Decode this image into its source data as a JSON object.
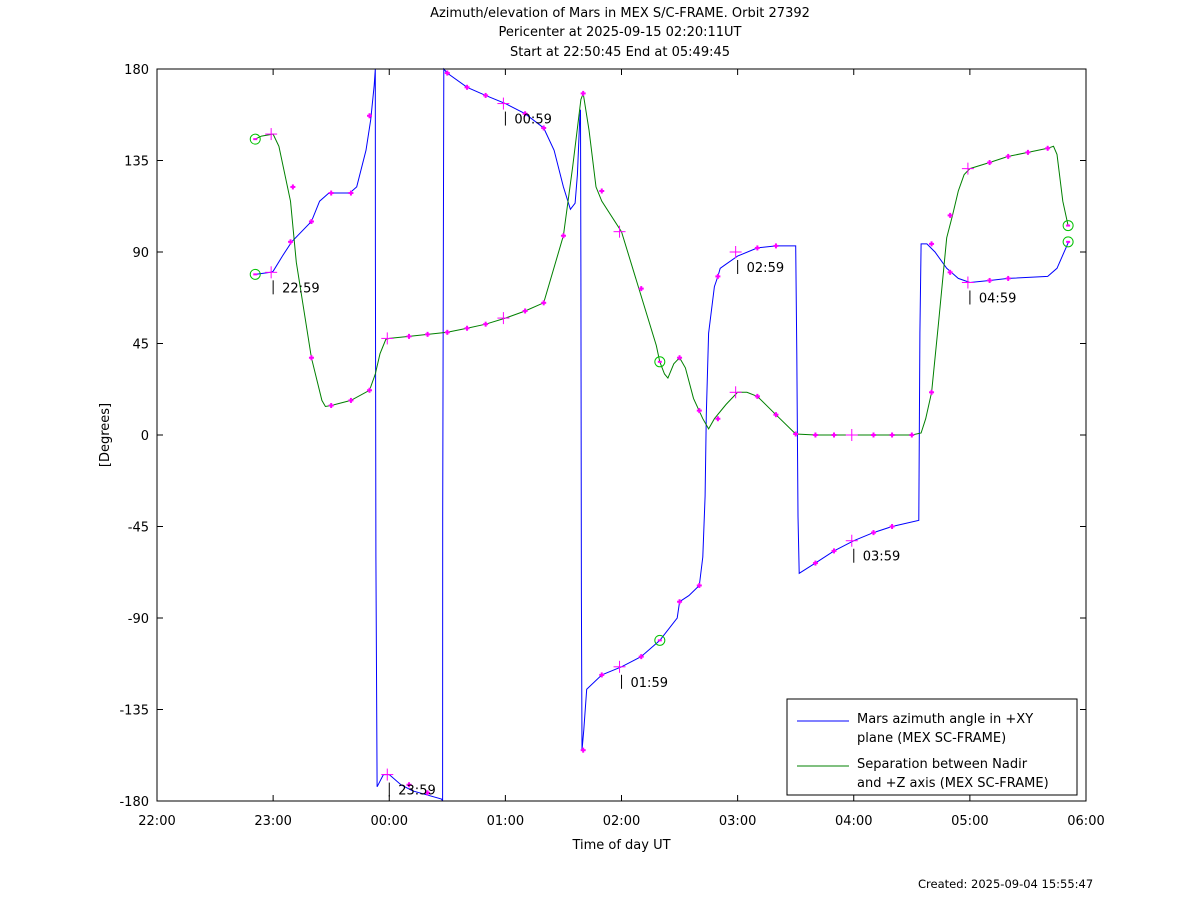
{
  "chart_data": {
    "type": "line",
    "title_lines": [
      "Azimuth/elevation of Mars in MEX S/C-FRAME.  Orbit 27392",
      "Pericenter at 2025-09-15 02:20:11UT",
      "Start at 22:50:45 End at 05:49:45"
    ],
    "xlabel": "Time of day UT",
    "ylabel": "[Degrees]",
    "xlim": [
      22,
      30
    ],
    "ylim": [
      -180,
      180
    ],
    "x_tick_values": [
      22,
      23,
      24,
      25,
      26,
      27,
      28,
      29,
      30
    ],
    "x_tick_labels": [
      "22:00",
      "23:00",
      "00:00",
      "01:00",
      "02:00",
      "03:00",
      "04:00",
      "05:00",
      "06:00"
    ],
    "y_tick_values": [
      180,
      135,
      90,
      45,
      0,
      -45,
      -90,
      -135,
      -180
    ],
    "y_tick_labels": [
      "180",
      "135",
      "90",
      "45",
      "0",
      "-45",
      "-90",
      "-135",
      "-180"
    ],
    "grid": false,
    "legend_position": "bottom-right",
    "series": [
      {
        "name": "Mars azimuth angle in +XY plane (MEX SC-FRAME)",
        "legend_lines": [
          "Mars azimuth angle in +XY",
          "plane (MEX SC-FRAME)"
        ],
        "color": "#0000ff",
        "points": [
          [
            22.846,
            79
          ],
          [
            22.98,
            80
          ],
          [
            23.0,
            80.5
          ],
          [
            23.08,
            88
          ],
          [
            23.16,
            95
          ],
          [
            23.33,
            105
          ],
          [
            23.4,
            115
          ],
          [
            23.48,
            119
          ],
          [
            23.66,
            119
          ],
          [
            23.72,
            122
          ],
          [
            23.8,
            140
          ],
          [
            23.84,
            155
          ],
          [
            23.87,
            172
          ],
          [
            23.88,
            180
          ],
          [
            23.88,
            180
          ],
          [
            23.881,
            90
          ],
          [
            23.885,
            -60
          ],
          [
            23.895,
            -173
          ],
          [
            23.95,
            -167
          ],
          [
            24.0,
            -167
          ],
          [
            24.1,
            -172
          ],
          [
            24.2,
            -175
          ],
          [
            24.45,
            -179
          ],
          [
            24.459,
            -180
          ],
          [
            24.459,
            -180
          ],
          [
            24.46,
            -40
          ],
          [
            24.47,
            180
          ],
          [
            24.5,
            178
          ],
          [
            24.67,
            171
          ],
          [
            24.83,
            167
          ],
          [
            25.0,
            163
          ],
          [
            25.17,
            158
          ],
          [
            25.33,
            151
          ],
          [
            25.42,
            140
          ],
          [
            25.5,
            122
          ],
          [
            25.56,
            111
          ],
          [
            25.6,
            114
          ],
          [
            25.62,
            128
          ],
          [
            25.64,
            155
          ],
          [
            25.647,
            160
          ],
          [
            25.65,
            80
          ],
          [
            25.655,
            -80
          ],
          [
            25.66,
            -155
          ],
          [
            25.675,
            -145
          ],
          [
            25.7,
            -125
          ],
          [
            25.83,
            -118
          ],
          [
            26.0,
            -114
          ],
          [
            26.17,
            -109
          ],
          [
            26.33,
            -101
          ],
          [
            26.48,
            -90
          ],
          [
            26.5,
            -82
          ],
          [
            26.58,
            -79
          ],
          [
            26.67,
            -74
          ],
          [
            26.7,
            -60
          ],
          [
            26.72,
            -30
          ],
          [
            26.73,
            10
          ],
          [
            26.75,
            50
          ],
          [
            26.8,
            73
          ],
          [
            26.83,
            78
          ],
          [
            26.85,
            82
          ],
          [
            26.9,
            84
          ],
          [
            27.0,
            88
          ],
          [
            27.17,
            92
          ],
          [
            27.33,
            93
          ],
          [
            27.5,
            93
          ],
          [
            27.51,
            40
          ],
          [
            27.52,
            -40
          ],
          [
            27.53,
            -68
          ],
          [
            27.67,
            -63
          ],
          [
            27.83,
            -57
          ],
          [
            28.0,
            -52
          ],
          [
            28.17,
            -48
          ],
          [
            28.33,
            -45
          ],
          [
            28.56,
            -42
          ],
          [
            28.57,
            50
          ],
          [
            28.58,
            94
          ],
          [
            28.63,
            94
          ],
          [
            28.7,
            90
          ],
          [
            28.8,
            82
          ],
          [
            28.9,
            77
          ],
          [
            29.0,
            75
          ],
          [
            29.17,
            76
          ],
          [
            29.33,
            77
          ],
          [
            29.67,
            78
          ],
          [
            29.75,
            82
          ],
          [
            29.85,
            95
          ]
        ]
      },
      {
        "name": "Separation between Nadir and +Z axis (MEX SC-FRAME)",
        "legend_lines": [
          "Separation between Nadir",
          "and +Z axis (MEX SC-FRAME)"
        ],
        "color": "#008000",
        "points": [
          [
            22.846,
            145.5
          ],
          [
            22.9,
            147
          ],
          [
            23.0,
            148
          ],
          [
            23.05,
            142
          ],
          [
            23.15,
            115
          ],
          [
            23.2,
            85
          ],
          [
            23.33,
            38
          ],
          [
            23.42,
            17
          ],
          [
            23.45,
            14
          ],
          [
            23.5,
            14.5
          ],
          [
            23.67,
            17
          ],
          [
            23.83,
            22
          ],
          [
            23.88,
            30
          ],
          [
            23.92,
            40
          ],
          [
            23.97,
            47
          ],
          [
            24.0,
            47.5
          ],
          [
            24.17,
            48.5
          ],
          [
            24.33,
            49.5
          ],
          [
            24.5,
            50.5
          ],
          [
            24.67,
            52.5
          ],
          [
            24.83,
            54.5
          ],
          [
            25.0,
            57.5
          ],
          [
            25.17,
            61
          ],
          [
            25.33,
            65
          ],
          [
            25.5,
            98
          ],
          [
            25.58,
            132
          ],
          [
            25.65,
            165
          ],
          [
            25.67,
            168
          ],
          [
            25.72,
            150
          ],
          [
            25.78,
            122
          ],
          [
            25.83,
            115
          ],
          [
            26.0,
            100
          ],
          [
            26.15,
            72
          ],
          [
            26.3,
            44
          ],
          [
            26.33,
            36
          ],
          [
            26.37,
            30
          ],
          [
            26.4,
            28
          ],
          [
            26.45,
            35
          ],
          [
            26.5,
            38
          ],
          [
            26.55,
            33
          ],
          [
            26.62,
            18
          ],
          [
            26.7,
            8
          ],
          [
            26.75,
            3
          ],
          [
            26.8,
            8
          ],
          [
            26.9,
            15
          ],
          [
            27.0,
            21
          ],
          [
            27.08,
            21
          ],
          [
            27.17,
            19
          ],
          [
            27.33,
            10
          ],
          [
            27.5,
            0.5
          ],
          [
            27.67,
            0
          ],
          [
            27.83,
            0
          ],
          [
            28.0,
            0
          ],
          [
            28.17,
            0
          ],
          [
            28.33,
            0
          ],
          [
            28.5,
            0
          ],
          [
            28.58,
            1
          ],
          [
            28.62,
            8
          ],
          [
            28.67,
            21
          ],
          [
            28.73,
            55
          ],
          [
            28.8,
            97
          ],
          [
            28.85,
            108
          ],
          [
            28.9,
            120
          ],
          [
            28.95,
            128
          ],
          [
            29.0,
            131
          ],
          [
            29.17,
            134
          ],
          [
            29.33,
            137
          ],
          [
            29.5,
            139
          ],
          [
            29.67,
            141
          ],
          [
            29.72,
            142
          ],
          [
            29.75,
            138
          ],
          [
            29.8,
            115
          ],
          [
            29.846,
            103
          ]
        ]
      }
    ],
    "hour_markers": [
      {
        "x": 22.983,
        "y": 80,
        "label": "22:59"
      },
      {
        "x": 23.983,
        "y": -167,
        "label": "23:59"
      },
      {
        "x": 24.983,
        "y": 163,
        "label": "00:59"
      },
      {
        "x": 25.983,
        "y": -114,
        "label": "01:59"
      },
      {
        "x": 26.983,
        "y": 90,
        "label": "02:59"
      },
      {
        "x": 27.983,
        "y": -52,
        "label": "03:59"
      },
      {
        "x": 28.983,
        "y": 75,
        "label": "04:59"
      }
    ],
    "cross_markers": [
      [
        22.983,
        80
      ],
      [
        23.983,
        -167
      ],
      [
        24.983,
        163
      ],
      [
        25.983,
        -114
      ],
      [
        26.983,
        90
      ],
      [
        27.983,
        -52
      ],
      [
        28.983,
        75
      ],
      [
        22.983,
        148
      ],
      [
        23.983,
        47.5
      ],
      [
        24.983,
        57.5
      ],
      [
        25.983,
        100
      ],
      [
        26.983,
        21
      ],
      [
        27.983,
        0
      ],
      [
        28.983,
        131
      ]
    ],
    "circle_markers": [
      [
        22.846,
        79
      ],
      [
        22.846,
        145.5
      ],
      [
        26.33,
        -101
      ],
      [
        26.33,
        36
      ],
      [
        29.846,
        95
      ],
      [
        29.846,
        103
      ]
    ],
    "minute_dots": [
      [
        23.15,
        95
      ],
      [
        23.33,
        105
      ],
      [
        23.5,
        119
      ],
      [
        23.67,
        119
      ],
      [
        23.83,
        157
      ],
      [
        24.17,
        -172
      ],
      [
        24.33,
        -176
      ],
      [
        24.5,
        178
      ],
      [
        24.67,
        171
      ],
      [
        24.83,
        167
      ],
      [
        25.17,
        158
      ],
      [
        25.33,
        151
      ],
      [
        25.67,
        -155
      ],
      [
        25.83,
        -118
      ],
      [
        26.17,
        -109
      ],
      [
        26.5,
        -82
      ],
      [
        26.67,
        -74
      ],
      [
        26.83,
        78
      ],
      [
        27.17,
        92
      ],
      [
        27.33,
        93
      ],
      [
        27.67,
        -63
      ],
      [
        27.83,
        -57
      ],
      [
        28.17,
        -48
      ],
      [
        28.33,
        -45
      ],
      [
        28.67,
        94
      ],
      [
        28.83,
        80
      ],
      [
        29.17,
        76
      ],
      [
        29.33,
        77
      ],
      [
        23.17,
        122
      ],
      [
        23.33,
        38
      ],
      [
        23.5,
        14.5
      ],
      [
        23.67,
        17
      ],
      [
        23.83,
        22
      ],
      [
        24.17,
        48.5
      ],
      [
        24.33,
        49.5
      ],
      [
        24.5,
        50.5
      ],
      [
        24.67,
        52.5
      ],
      [
        24.83,
        54.5
      ],
      [
        25.17,
        61
      ],
      [
        25.33,
        65
      ],
      [
        25.5,
        98
      ],
      [
        25.67,
        168
      ],
      [
        25.83,
        120
      ],
      [
        26.17,
        72
      ],
      [
        26.5,
        38
      ],
      [
        26.67,
        12
      ],
      [
        26.83,
        8
      ],
      [
        27.17,
        19
      ],
      [
        27.33,
        10
      ],
      [
        27.5,
        0.5
      ],
      [
        27.67,
        0
      ],
      [
        27.83,
        0
      ],
      [
        28.17,
        0
      ],
      [
        28.33,
        0
      ],
      [
        28.5,
        0
      ],
      [
        28.67,
        21
      ],
      [
        28.83,
        108
      ],
      [
        29.17,
        134
      ],
      [
        29.33,
        137
      ],
      [
        29.5,
        139
      ],
      [
        29.67,
        141
      ]
    ],
    "marker_color": "#ff00ff",
    "circle_color": "#00c000"
  },
  "footer": {
    "created": "Created: 2025-09-04 15:55:47"
  }
}
